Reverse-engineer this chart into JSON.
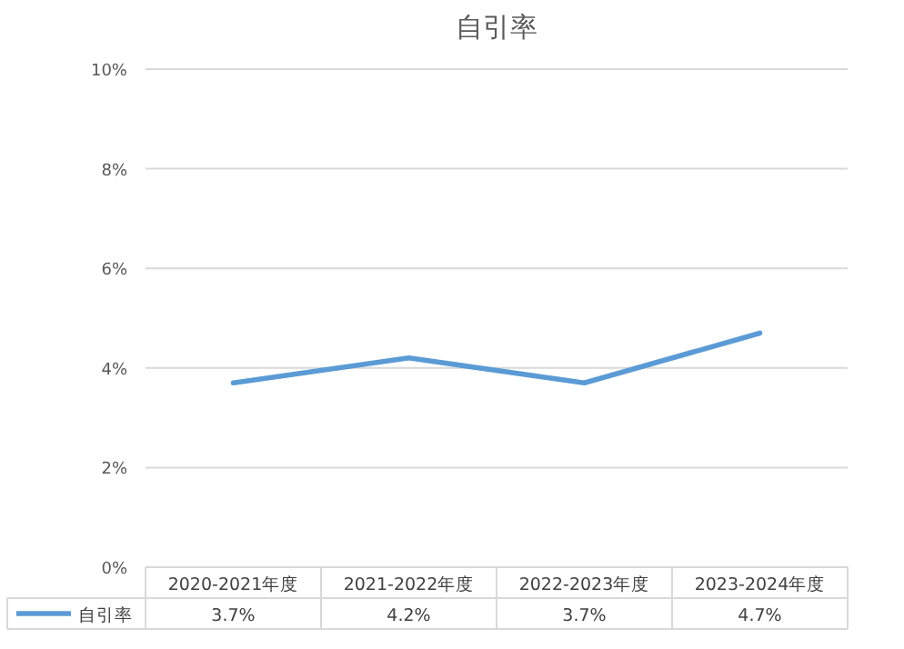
{
  "chart_data": {
    "type": "line",
    "title": "自引率",
    "categories": [
      "2020-2021年度",
      "2021-2022年度",
      "2022-2023年度",
      "2023-2024年度"
    ],
    "series": [
      {
        "name": "自引率",
        "color": "#5b9bd5",
        "values": [
          3.7,
          4.2,
          3.7,
          4.7
        ],
        "value_labels": [
          "3.7%",
          "4.2%",
          "3.7%",
          "4.7%"
        ]
      }
    ],
    "ylim": [
      0,
      10
    ],
    "yticks": [
      {
        "value": 0,
        "label": "0%"
      },
      {
        "value": 2,
        "label": "2%"
      },
      {
        "value": 4,
        "label": "4%"
      },
      {
        "value": 6,
        "label": "6%"
      },
      {
        "value": 8,
        "label": "8%"
      },
      {
        "value": 10,
        "label": "10%"
      }
    ],
    "grid": "y",
    "legend": "bottom",
    "marker": "none",
    "line_style": "solid"
  }
}
